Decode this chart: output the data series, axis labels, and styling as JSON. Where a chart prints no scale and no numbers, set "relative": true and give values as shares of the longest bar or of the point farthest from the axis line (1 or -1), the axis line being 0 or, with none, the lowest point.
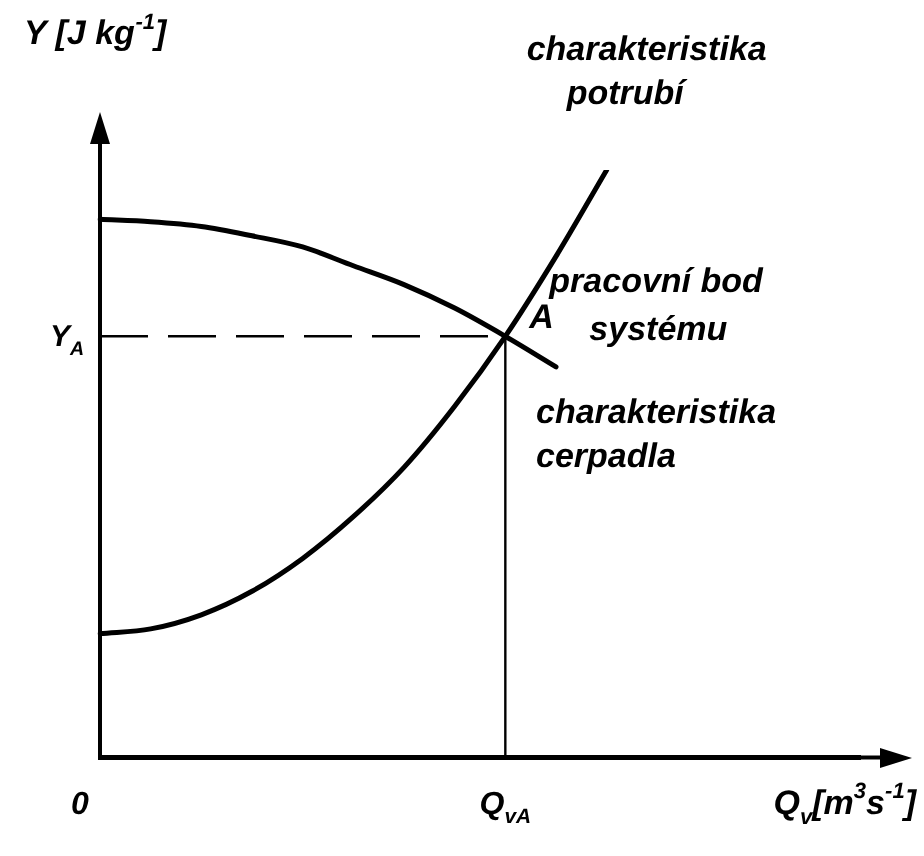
{
  "chart_data": {
    "type": "line",
    "relative": true,
    "xlabel": "Q$_{v}$[m$^{3}$s$^{-1}$]",
    "ylabel": "Y [J kg$^{-1}$]",
    "categories": [
      null,
      null,
      null,
      null,
      null,
      null,
      null,
      null,
      null,
      null,
      null,
      null,
      null,
      null,
      null,
      null
    ],
    "series": [
      {
        "name": "charakteristika potrubí",
        "color": "#000000",
        "values": [
          0.211,
          0.219,
          0.243,
          0.283,
          0.339,
          0.41,
          0.494,
          0.598,
          0.717,
          0.853,
          1,
          null,
          null,
          null,
          null,
          null
        ]
      },
      {
        "name": "charakteristika cerpadla",
        "color": "#000000",
        "values": [
          0.916,
          0.912,
          0.904,
          0.888,
          0.869,
          0.837,
          0.805,
          0.765,
          0.717,
          0.665,
          null,
          null,
          null,
          null,
          null,
          null
        ]
      }
    ],
    "ref_lines": [
      {
        "axis": "y",
        "value": 0.717,
        "label": "Y$_{A}$",
        "line_style": "dashed"
      },
      {
        "axis": "x",
        "label": "Q$_{vA}$",
        "line_style": "solid"
      }
    ],
    "annotations": [
      "0",
      "A",
      "pracovní bod systému"
    ],
    "legend": false,
    "marker": "none",
    "line_style": "solid"
  }
}
